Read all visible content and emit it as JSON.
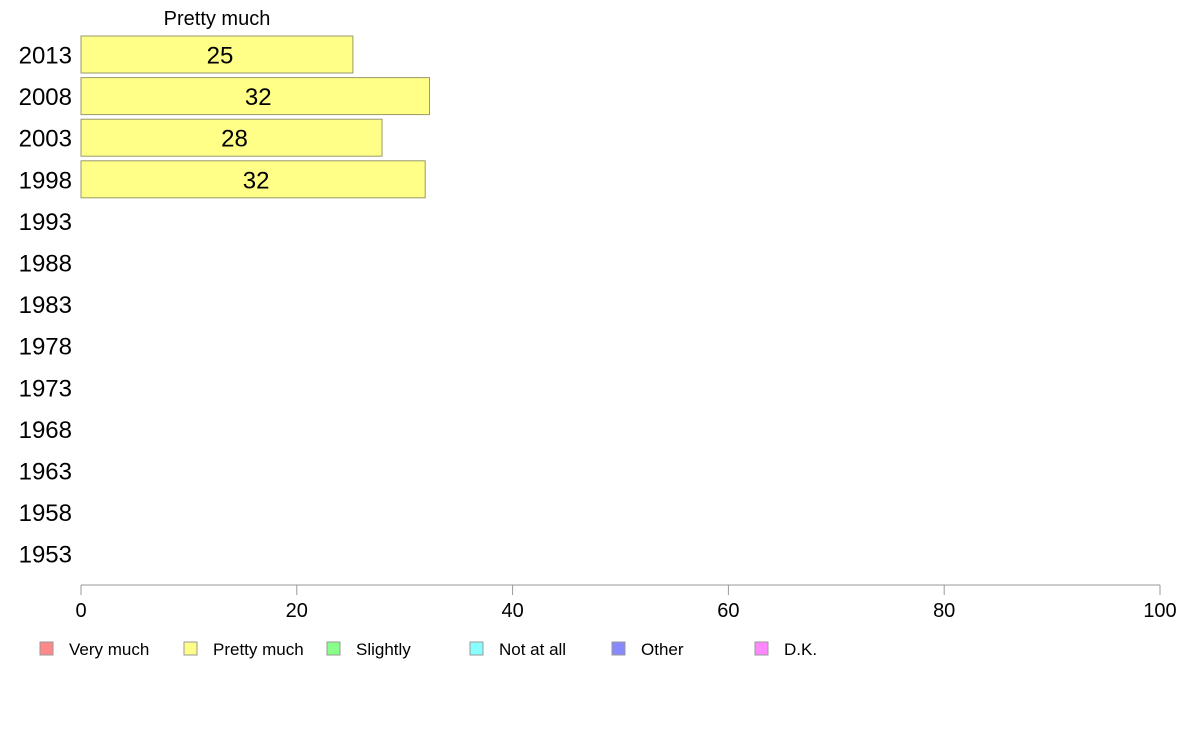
{
  "chart_data": {
    "type": "bar",
    "orientation": "horizontal",
    "series_title": "Pretty much",
    "categories": [
      "2013",
      "2008",
      "2003",
      "1998",
      "1993",
      "1988",
      "1983",
      "1978",
      "1973",
      "1968",
      "1963",
      "1958",
      "1953"
    ],
    "series": [
      {
        "name": "Pretty much",
        "color": "#ffff88",
        "values": [
          25.2,
          32.3,
          27.9,
          31.9,
          null,
          null,
          null,
          null,
          null,
          null,
          null,
          null,
          null
        ]
      }
    ],
    "value_labels": [
      "25",
      "32",
      "28",
      "32"
    ],
    "xlim": [
      0,
      100
    ],
    "xticks": [
      0,
      20,
      40,
      60,
      80,
      100
    ],
    "grid": false,
    "legend_position": "bottom",
    "legend": [
      {
        "label": "Very much",
        "color": "#ff8888"
      },
      {
        "label": "Pretty much",
        "color": "#ffff88"
      },
      {
        "label": "Slightly",
        "color": "#88ff88"
      },
      {
        "label": "Not at all",
        "color": "#88ffff"
      },
      {
        "label": "Other",
        "color": "#8888ff"
      },
      {
        "label": "D.K.",
        "color": "#ff88ff"
      }
    ]
  }
}
